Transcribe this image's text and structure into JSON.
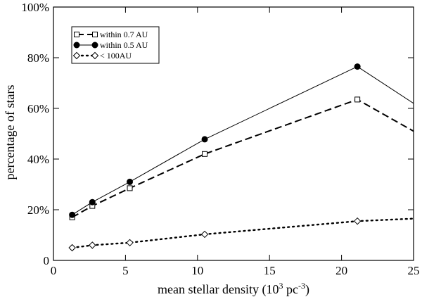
{
  "chart_data": {
    "type": "line",
    "title": "",
    "xlabel": "mean stellar density (10",
    "xlabel_exp1": "3",
    "xlabel_mid": " pc",
    "xlabel_exp2": "-3",
    "xlabel_end": ")",
    "ylabel": "percentage of stars",
    "xlim": [
      0,
      25
    ],
    "ylim": [
      0,
      100
    ],
    "xticks": [
      0,
      5,
      10,
      15,
      20,
      25
    ],
    "yticks": [
      0,
      20,
      40,
      60,
      80,
      100
    ],
    "ytick_labels": [
      "0",
      "20%",
      "40%",
      "60%",
      "80%",
      "100%"
    ],
    "grid": false,
    "legend_position": "top-left",
    "series": [
      {
        "name": "within 0.7 AU",
        "marker": "square",
        "line": "dashed",
        "x": [
          1.3,
          2.7,
          5.3,
          10.5,
          21.1,
          25
        ],
        "y": [
          17,
          21.5,
          28.5,
          42,
          63.5,
          51
        ]
      },
      {
        "name": "within 0.5 AU",
        "marker": "circle",
        "line": "solid",
        "x": [
          1.3,
          2.7,
          5.3,
          10.5,
          21.1,
          25
        ],
        "y": [
          18,
          23,
          31,
          47.8,
          76.5,
          62
        ]
      },
      {
        "name": "< 100AU",
        "marker": "diamond",
        "line": "dotted",
        "x": [
          1.3,
          2.7,
          5.3,
          10.5,
          21.1,
          25
        ],
        "y": [
          5,
          6,
          7,
          10.3,
          15.5,
          16.5
        ]
      }
    ]
  }
}
